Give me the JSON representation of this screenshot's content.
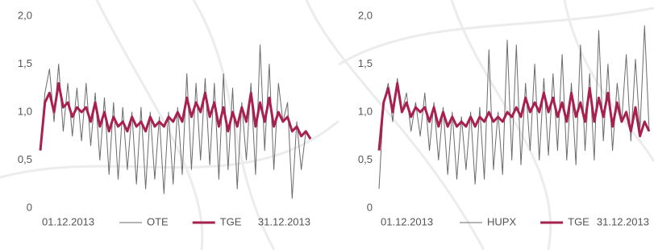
{
  "chart_data": [
    {
      "type": "line",
      "categories": [
        "01.12.2013",
        null,
        null,
        null,
        null,
        null,
        null,
        null,
        null,
        null,
        null,
        null,
        null,
        null,
        null,
        null,
        null,
        null,
        null,
        null,
        null,
        null,
        null,
        null,
        null,
        null,
        null,
        null,
        null,
        null,
        null,
        null,
        null,
        null,
        null,
        null,
        null,
        null,
        null,
        null,
        null,
        null,
        null,
        null,
        null,
        null,
        null,
        null,
        null,
        null,
        null,
        null,
        null,
        null,
        null,
        null,
        null,
        null,
        null,
        "31.12.2013"
      ],
      "series": [
        {
          "name": "OTE",
          "color": "#6b6b6b",
          "values": [
            0.62,
            1.2,
            1.45,
            0.9,
            1.5,
            0.8,
            1.3,
            0.75,
            1.25,
            0.7,
            1.3,
            0.65,
            1.2,
            0.5,
            1.15,
            0.35,
            1.1,
            0.3,
            1.05,
            0.4,
            1.0,
            0.25,
            1.05,
            0.2,
            1.0,
            0.3,
            0.95,
            0.15,
            1.0,
            0.25,
            1.05,
            0.35,
            1.4,
            0.4,
            1.3,
            0.5,
            1.35,
            0.45,
            1.3,
            0.3,
            1.4,
            0.4,
            1.25,
            0.2,
            1.1,
            0.5,
            1.3,
            0.35,
            1.7,
            0.6,
            1.5,
            0.4,
            1.3,
            0.9,
            1.1,
            0.1,
            0.9,
            0.4,
            0.8,
            0.72
          ]
        },
        {
          "name": "TGE",
          "color": "#a8204f",
          "values": [
            0.6,
            1.1,
            1.2,
            1.0,
            1.3,
            1.05,
            1.1,
            0.95,
            1.05,
            1.0,
            1.05,
            0.9,
            1.1,
            0.85,
            1.0,
            0.8,
            0.95,
            0.85,
            0.9,
            0.8,
            0.95,
            0.85,
            0.9,
            0.8,
            0.95,
            0.85,
            0.9,
            0.85,
            0.95,
            0.9,
            1.0,
            0.9,
            1.15,
            0.95,
            1.1,
            1.0,
            1.2,
            0.95,
            1.1,
            0.85,
            1.05,
            0.8,
            1.0,
            0.85,
            1.05,
            0.9,
            1.2,
            0.85,
            1.1,
            0.9,
            1.15,
            0.85,
            1.0,
            0.9,
            0.95,
            0.8,
            0.85,
            0.75,
            0.8,
            0.72
          ]
        }
      ],
      "ylim": [
        0,
        2
      ],
      "yticks": [
        0,
        {
          "value": 0.5,
          "label": "0,5"
        },
        {
          "value": 1,
          "label": "1,0"
        },
        {
          "value": 1.5,
          "label": "1,5"
        },
        {
          "value": 2,
          "label": "2,0"
        }
      ],
      "grid": false
    },
    {
      "type": "line",
      "categories": [
        "01.12.2013",
        null,
        null,
        null,
        null,
        null,
        null,
        null,
        null,
        null,
        null,
        null,
        null,
        null,
        null,
        null,
        null,
        null,
        null,
        null,
        null,
        null,
        null,
        null,
        null,
        null,
        null,
        null,
        null,
        null,
        null,
        null,
        null,
        null,
        null,
        null,
        null,
        null,
        null,
        null,
        null,
        null,
        null,
        null,
        null,
        null,
        null,
        null,
        null,
        null,
        null,
        null,
        null,
        null,
        null,
        null,
        null,
        null,
        null,
        "31.12.2013"
      ],
      "series": [
        {
          "name": "HUPX",
          "color": "#6b6b6b",
          "values": [
            0.2,
            1.1,
            1.3,
            0.9,
            1.35,
            1.0,
            1.2,
            0.8,
            1.1,
            0.75,
            1.2,
            0.6,
            1.1,
            0.5,
            1.05,
            0.35,
            1.0,
            0.3,
            0.95,
            0.4,
            1.0,
            0.25,
            1.05,
            0.3,
            1.65,
            0.4,
            1.0,
            0.35,
            1.75,
            0.5,
            1.7,
            0.45,
            1.3,
            0.6,
            1.5,
            0.5,
            1.35,
            0.55,
            1.4,
            0.6,
            1.6,
            0.5,
            1.3,
            0.45,
            1.7,
            0.6,
            1.4,
            0.5,
            1.85,
            0.7,
            1.5,
            0.6,
            1.3,
            0.9,
            1.6,
            0.7,
            1.55,
            0.8,
            1.9,
            0.8
          ]
        },
        {
          "name": "TGE",
          "color": "#a8204f",
          "values": [
            0.6,
            1.1,
            1.25,
            1.0,
            1.3,
            1.0,
            1.1,
            0.95,
            1.05,
            1.0,
            1.05,
            0.9,
            1.05,
            0.85,
            1.0,
            0.85,
            0.95,
            0.85,
            0.9,
            0.85,
            0.95,
            0.85,
            0.95,
            0.9,
            1.0,
            0.9,
            0.95,
            0.9,
            1.0,
            0.95,
            1.05,
            0.95,
            1.15,
            1.0,
            1.1,
            1.0,
            1.2,
            1.0,
            1.15,
            0.95,
            1.1,
            0.9,
            1.2,
            0.95,
            1.1,
            0.9,
            1.25,
            0.9,
            1.15,
            0.95,
            1.2,
            0.85,
            1.1,
            0.9,
            1.0,
            0.8,
            1.05,
            0.75,
            0.9,
            0.8
          ]
        }
      ],
      "ylim": [
        0,
        2
      ],
      "yticks": [
        0,
        {
          "value": 0.5,
          "label": "0,5"
        },
        {
          "value": 1,
          "label": "1,0"
        },
        {
          "value": 1.5,
          "label": "1,5"
        },
        {
          "value": 2,
          "label": "2,0"
        }
      ],
      "grid": false
    }
  ]
}
